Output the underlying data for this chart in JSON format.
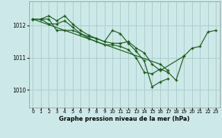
{
  "title": "Graphe pression niveau de la mer (hPa)",
  "bg_color": "#cde8e8",
  "grid_color": "#aacccc",
  "line_color": "#1a5c1a",
  "marker_color": "#1a5c1a",
  "xlim": [
    -0.5,
    23.5
  ],
  "ylim": [
    1009.45,
    1012.75
  ],
  "yticks": [
    1010,
    1011,
    1012
  ],
  "xticks": [
    0,
    1,
    2,
    3,
    4,
    5,
    6,
    7,
    8,
    9,
    10,
    11,
    12,
    13,
    14,
    15,
    16,
    17,
    18,
    19,
    20,
    21,
    22,
    23
  ],
  "lines": [
    {
      "x": [
        0,
        1,
        2,
        3,
        4,
        5,
        6,
        7,
        8,
        9,
        10,
        11,
        12,
        13,
        14,
        15,
        16,
        19
      ],
      "y": [
        1012.2,
        1012.2,
        1012.2,
        1011.85,
        1011.85,
        1011.85,
        1011.75,
        1011.65,
        1011.6,
        1011.5,
        1011.45,
        1011.45,
        1011.5,
        1011.3,
        1011.15,
        1010.8,
        1010.6,
        1011.05
      ]
    },
    {
      "x": [
        0,
        1,
        2,
        3,
        4,
        5,
        6,
        7,
        8,
        9,
        10,
        11,
        12,
        13,
        14,
        15,
        16,
        17
      ],
      "y": [
        1012.2,
        1012.2,
        1012.3,
        1012.15,
        1012.3,
        1012.05,
        1011.85,
        1011.7,
        1011.6,
        1011.5,
        1011.85,
        1011.75,
        1011.45,
        1011.2,
        1010.9,
        1010.1,
        1010.25,
        1010.35
      ]
    },
    {
      "x": [
        0,
        1,
        2,
        3,
        4,
        5,
        6,
        7,
        8,
        9,
        10,
        11,
        12,
        13,
        14,
        15,
        16,
        17,
        18,
        19,
        20,
        21,
        22,
        23
      ],
      "y": [
        1012.2,
        1012.2,
        1012.05,
        1012.05,
        1012.15,
        1011.95,
        1011.75,
        1011.6,
        1011.5,
        1011.4,
        1011.4,
        1011.35,
        1011.25,
        1011.0,
        1010.55,
        1010.5,
        1010.65,
        1010.55,
        1010.3,
        1011.05,
        1011.3,
        1011.35,
        1011.8,
        1011.85
      ]
    },
    {
      "x": [
        0,
        16,
        17
      ],
      "y": [
        1012.2,
        1010.8,
        1010.6
      ]
    }
  ]
}
